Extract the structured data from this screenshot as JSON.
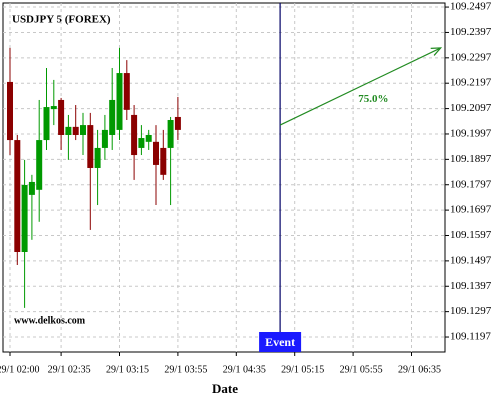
{
  "chart_data": {
    "type": "candlestick",
    "title": "USDJPY 5 (FOREX)",
    "x_label": "Date",
    "watermark": "www.delkos.com",
    "up_color": "#009900",
    "down_color": "#8b0000",
    "grid": true,
    "x": [
      "29/1 02:00",
      "29/1 02:05",
      "29/1 02:10",
      "29/1 02:15",
      "29/1 02:20",
      "29/1 02:25",
      "29/1 02:30",
      "29/1 02:35",
      "29/1 02:40",
      "29/1 02:45",
      "29/1 02:50",
      "29/1 02:55",
      "29/1 03:00",
      "29/1 03:05",
      "29/1 03:10",
      "29/1 03:15",
      "29/1 03:20",
      "29/1 03:25",
      "29/1 03:30",
      "29/1 03:35",
      "29/1 03:40",
      "29/1 03:45",
      "29/1 03:50",
      "29/1 03:55"
    ],
    "open": [
      109.2202,
      109.1973,
      109.1532,
      109.1757,
      109.1777,
      109.1973,
      109.2095,
      109.2131,
      109.1993,
      109.2025,
      109.1993,
      109.2032,
      109.1863,
      109.1942,
      109.1993,
      109.2013,
      109.2237,
      109.2072,
      109.1942,
      109.1966,
      109.1966,
      109.1942,
      109.1942,
      109.2064
    ],
    "high": [
      109.2336,
      109.1993,
      109.1895,
      109.1836,
      109.2131,
      109.2257,
      109.221,
      109.2139,
      109.2072,
      109.2111,
      109.208,
      109.208,
      109.2013,
      109.2072,
      109.2257,
      109.2336,
      109.2288,
      109.2111,
      109.2032,
      109.2013,
      109.2032,
      109.2013,
      109.2064,
      109.2143
    ],
    "low": [
      109.1914,
      109.1481,
      109.1312,
      109.158,
      109.1651,
      109.1934,
      109.2032,
      109.1934,
      109.1895,
      109.1973,
      109.1914,
      109.1619,
      109.1717,
      109.1895,
      109.1934,
      109.1973,
      109.2052,
      109.1816,
      109.1914,
      109.1934,
      109.1717,
      109.1816,
      109.1717,
      109.1973
    ],
    "close": [
      109.1973,
      109.1532,
      109.1796,
      109.1808,
      109.1973,
      109.2103,
      109.2107,
      109.1993,
      109.2025,
      109.1993,
      109.2032,
      109.1863,
      109.1942,
      109.2013,
      109.2131,
      109.2237,
      109.2092,
      109.1914,
      109.1981,
      109.1993,
      109.1875,
      109.1836,
      109.2052,
      109.2013
    ],
    "ylim": [
      109.1138,
      109.2513
    ],
    "yticks": [
      109.1197,
      109.1297,
      109.1397,
      109.1497,
      109.1597,
      109.1697,
      109.1797,
      109.1897,
      109.1997,
      109.2097,
      109.2197,
      109.2297,
      109.2397,
      109.2497
    ],
    "xticks": [
      "29/1 02:00",
      "29/1 02:35",
      "29/1 03:15",
      "29/1 03:55",
      "29/1 04:35",
      "29/1 05:15",
      "29/1 05:55",
      "29/1 06:35"
    ],
    "event": {
      "x": "29/1 05:05",
      "label": "Event",
      "color": "#1a1aff",
      "line_color": "#000066"
    },
    "prediction": {
      "x": [
        "29/1 05:05",
        "29/1 06:55"
      ],
      "y": [
        109.2032,
        109.2336
      ],
      "label": "75.0%",
      "color": "#228b22"
    }
  }
}
